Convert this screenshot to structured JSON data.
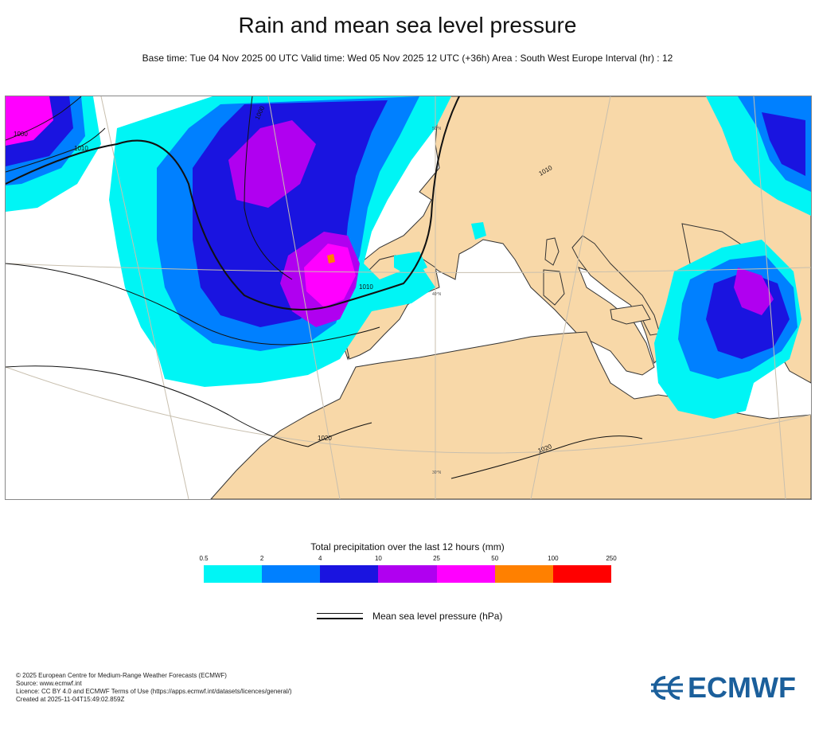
{
  "title": "Rain and mean sea level pressure",
  "subtitle": "Base time: Tue 04 Nov 2025 00 UTC Valid time: Wed 05 Nov 2025 12 UTC (+36h) Area : South West Europe Interval (hr) : 12",
  "map": {
    "isobar_labels": [
      "1000",
      "1010",
      "1000",
      "1010",
      "1010",
      "1020",
      "1020"
    ],
    "latitude_labels": [
      "50°N",
      "40°N",
      "30°N"
    ],
    "colors": {
      "land": "#f8d8a8",
      "sea": "#ffffff",
      "coast": "#333333",
      "isobar": "#111111",
      "graticule": "#c8bfae"
    }
  },
  "legend": {
    "title": "Total precipitation over the last 12 hours (mm)",
    "ticks": [
      "0.5",
      "2",
      "4",
      "10",
      "25",
      "50",
      "100",
      "250"
    ],
    "colors": [
      "#00f5f5",
      "#0080ff",
      "#1a14e0",
      "#b000f0",
      "#ff00ff",
      "#ff8000",
      "#ff0000"
    ]
  },
  "pressure_legend": "Mean sea level pressure (hPa)",
  "credits": [
    "© 2025 European Centre for Medium-Range Weather Forecasts (ECMWF)",
    "Source: www.ecmwf.int",
    "Licence: CC BY 4.0 and ECMWF Terms of Use (https://apps.ecmwf.int/datasets/licences/general/)",
    "Created at 2025-11-04T15:49:02.859Z"
  ],
  "logo": {
    "text": "ECMWF",
    "color": "#1b5f9b"
  }
}
